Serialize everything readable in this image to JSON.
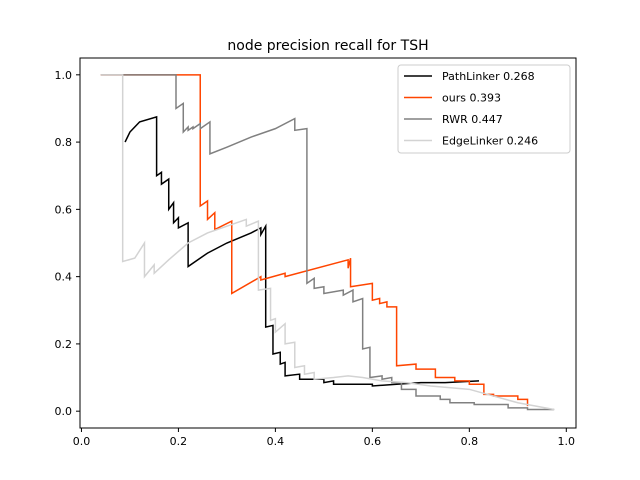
{
  "chart_data": {
    "type": "line",
    "title": "node precision recall for TSH",
    "xlabel": "",
    "ylabel": "",
    "xlim": [
      -0.003,
      1.02
    ],
    "ylim": [
      -0.05,
      1.05
    ],
    "xticks": [
      "0.0",
      "0.2",
      "0.4",
      "0.6",
      "0.8",
      "1.0"
    ],
    "yticks": [
      "0.0",
      "0.2",
      "0.4",
      "0.6",
      "0.8",
      "1.0"
    ],
    "grid": false,
    "legend_position": "top-right",
    "series": [
      {
        "name": "PathLinker 0.268",
        "color": "#000000",
        "points": [
          [
            0.09,
            0.8
          ],
          [
            0.1,
            0.83
          ],
          [
            0.12,
            0.86
          ],
          [
            0.155,
            0.875
          ],
          [
            0.155,
            0.7
          ],
          [
            0.165,
            0.71
          ],
          [
            0.165,
            0.675
          ],
          [
            0.18,
            0.69
          ],
          [
            0.18,
            0.6
          ],
          [
            0.19,
            0.62
          ],
          [
            0.19,
            0.56
          ],
          [
            0.2,
            0.575
          ],
          [
            0.2,
            0.545
          ],
          [
            0.22,
            0.56
          ],
          [
            0.22,
            0.43
          ],
          [
            0.26,
            0.47
          ],
          [
            0.3,
            0.5
          ],
          [
            0.35,
            0.53
          ],
          [
            0.37,
            0.545
          ],
          [
            0.37,
            0.525
          ],
          [
            0.38,
            0.55
          ],
          [
            0.38,
            0.25
          ],
          [
            0.395,
            0.255
          ],
          [
            0.395,
            0.17
          ],
          [
            0.41,
            0.175
          ],
          [
            0.41,
            0.14
          ],
          [
            0.42,
            0.145
          ],
          [
            0.42,
            0.105
          ],
          [
            0.45,
            0.11
          ],
          [
            0.45,
            0.095
          ],
          [
            0.5,
            0.095
          ],
          [
            0.5,
            0.085
          ],
          [
            0.52,
            0.09
          ],
          [
            0.52,
            0.08
          ],
          [
            0.6,
            0.08
          ],
          [
            0.6,
            0.075
          ],
          [
            0.65,
            0.08
          ],
          [
            0.7,
            0.085
          ],
          [
            0.75,
            0.085
          ],
          [
            0.82,
            0.09
          ]
        ]
      },
      {
        "name": "ours 0.393",
        "color": "#ff4500",
        "points": [
          [
            0.04,
            1.0
          ],
          [
            0.245,
            1.0
          ],
          [
            0.245,
            0.61
          ],
          [
            0.26,
            0.625
          ],
          [
            0.26,
            0.57
          ],
          [
            0.275,
            0.59
          ],
          [
            0.275,
            0.54
          ],
          [
            0.31,
            0.565
          ],
          [
            0.31,
            0.35
          ],
          [
            0.37,
            0.4
          ],
          [
            0.37,
            0.39
          ],
          [
            0.42,
            0.41
          ],
          [
            0.42,
            0.4
          ],
          [
            0.55,
            0.45
          ],
          [
            0.55,
            0.425
          ],
          [
            0.555,
            0.455
          ],
          [
            0.555,
            0.37
          ],
          [
            0.6,
            0.38
          ],
          [
            0.6,
            0.33
          ],
          [
            0.615,
            0.335
          ],
          [
            0.615,
            0.32
          ],
          [
            0.63,
            0.325
          ],
          [
            0.63,
            0.31
          ],
          [
            0.65,
            0.31
          ],
          [
            0.65,
            0.135
          ],
          [
            0.69,
            0.14
          ],
          [
            0.69,
            0.125
          ],
          [
            0.73,
            0.125
          ],
          [
            0.73,
            0.1
          ],
          [
            0.77,
            0.1
          ],
          [
            0.77,
            0.09
          ],
          [
            0.8,
            0.09
          ],
          [
            0.8,
            0.08
          ],
          [
            0.83,
            0.08
          ],
          [
            0.83,
            0.05
          ],
          [
            0.85,
            0.05
          ],
          [
            0.85,
            0.045
          ],
          [
            0.9,
            0.045
          ],
          [
            0.9,
            0.035
          ],
          [
            0.92,
            0.035
          ],
          [
            0.92,
            0.015
          ]
        ]
      },
      {
        "name": "RWR 0.447",
        "color": "#808080",
        "points": [
          [
            0.04,
            1.0
          ],
          [
            0.195,
            1.0
          ],
          [
            0.195,
            0.9
          ],
          [
            0.21,
            0.915
          ],
          [
            0.21,
            0.83
          ],
          [
            0.22,
            0.845
          ],
          [
            0.22,
            0.835
          ],
          [
            0.23,
            0.845
          ],
          [
            0.23,
            0.84
          ],
          [
            0.245,
            0.855
          ],
          [
            0.245,
            0.84
          ],
          [
            0.265,
            0.86
          ],
          [
            0.265,
            0.765
          ],
          [
            0.3,
            0.785
          ],
          [
            0.35,
            0.815
          ],
          [
            0.4,
            0.84
          ],
          [
            0.44,
            0.87
          ],
          [
            0.44,
            0.835
          ],
          [
            0.465,
            0.84
          ],
          [
            0.465,
            0.38
          ],
          [
            0.48,
            0.395
          ],
          [
            0.48,
            0.365
          ],
          [
            0.5,
            0.37
          ],
          [
            0.5,
            0.35
          ],
          [
            0.54,
            0.36
          ],
          [
            0.54,
            0.345
          ],
          [
            0.56,
            0.36
          ],
          [
            0.56,
            0.325
          ],
          [
            0.58,
            0.335
          ],
          [
            0.58,
            0.185
          ],
          [
            0.595,
            0.19
          ],
          [
            0.595,
            0.1
          ],
          [
            0.62,
            0.105
          ],
          [
            0.62,
            0.095
          ],
          [
            0.64,
            0.1
          ],
          [
            0.64,
            0.085
          ],
          [
            0.66,
            0.085
          ],
          [
            0.66,
            0.065
          ],
          [
            0.69,
            0.065
          ],
          [
            0.69,
            0.045
          ],
          [
            0.74,
            0.045
          ],
          [
            0.74,
            0.035
          ],
          [
            0.76,
            0.035
          ],
          [
            0.76,
            0.025
          ],
          [
            0.81,
            0.025
          ],
          [
            0.81,
            0.02
          ],
          [
            0.88,
            0.02
          ],
          [
            0.88,
            0.01
          ],
          [
            0.92,
            0.01
          ],
          [
            0.92,
            0.005
          ],
          [
            0.975,
            0.005
          ]
        ]
      },
      {
        "name": "EdgeLinker 0.246",
        "color": "#d3d3d3",
        "points": [
          [
            0.04,
            1.0
          ],
          [
            0.085,
            1.0
          ],
          [
            0.085,
            0.445
          ],
          [
            0.11,
            0.455
          ],
          [
            0.13,
            0.5
          ],
          [
            0.13,
            0.4
          ],
          [
            0.15,
            0.435
          ],
          [
            0.15,
            0.41
          ],
          [
            0.18,
            0.45
          ],
          [
            0.22,
            0.5
          ],
          [
            0.26,
            0.53
          ],
          [
            0.3,
            0.55
          ],
          [
            0.34,
            0.57
          ],
          [
            0.34,
            0.55
          ],
          [
            0.365,
            0.565
          ],
          [
            0.365,
            0.36
          ],
          [
            0.39,
            0.365
          ],
          [
            0.39,
            0.27
          ],
          [
            0.4,
            0.275
          ],
          [
            0.4,
            0.235
          ],
          [
            0.42,
            0.26
          ],
          [
            0.42,
            0.2
          ],
          [
            0.44,
            0.205
          ],
          [
            0.44,
            0.13
          ],
          [
            0.46,
            0.135
          ],
          [
            0.46,
            0.11
          ],
          [
            0.48,
            0.115
          ],
          [
            0.48,
            0.095
          ],
          [
            0.52,
            0.1
          ],
          [
            0.55,
            0.105
          ],
          [
            0.58,
            0.1
          ],
          [
            0.62,
            0.09
          ],
          [
            0.67,
            0.085
          ],
          [
            0.72,
            0.075
          ],
          [
            0.8,
            0.065
          ],
          [
            0.85,
            0.045
          ],
          [
            0.9,
            0.025
          ],
          [
            0.975,
            0.005
          ]
        ]
      }
    ]
  }
}
